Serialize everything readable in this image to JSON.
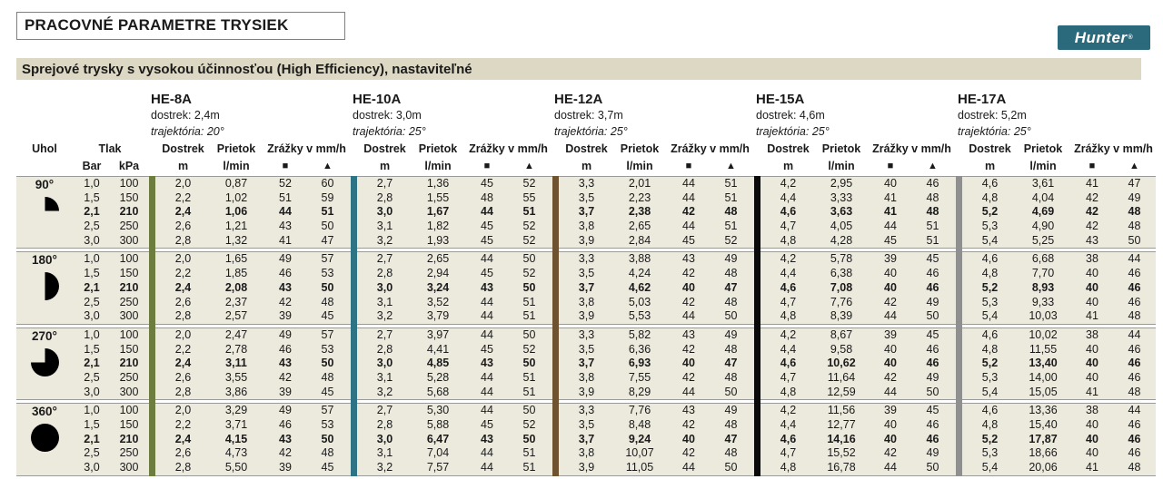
{
  "page": {
    "title": "PRACOVNÉ PARAMETRE TRYSIEK",
    "subtitle": "Sprejové trysky s vysokou účinnosťou (High Efficiency), nastaviteľné",
    "logo_text": "Hunter",
    "logo_reg": "®",
    "logo_bg": "#2B6A7C"
  },
  "table": {
    "headers": {
      "uhol": "Uhol",
      "tlak": "Tlak",
      "bar": "Bar",
      "kpa": "kPa",
      "dostrek": "Dostrek",
      "prietok": "Prietok",
      "zrazky": "Zrážky v mm/h",
      "m": "m",
      "lmin": "l/min",
      "square": "■",
      "triangle": "▲"
    },
    "nozzles": [
      {
        "name": "HE-8A",
        "range": "dostrek: 2,4m",
        "trajectory": "trajektória: 20°",
        "bar_color": "#6D7C3F"
      },
      {
        "name": "HE-10A",
        "range": "dostrek: 3,0m",
        "trajectory": "trajektória: 25°",
        "bar_color": "#2E7485"
      },
      {
        "name": "HE-12A",
        "range": "dostrek: 3,7m",
        "trajectory": "trajektória: 25°",
        "bar_color": "#6F522F"
      },
      {
        "name": "HE-15A",
        "range": "dostrek: 4,6m",
        "trajectory": "trajektória: 25°",
        "bar_color": "#0A0A0A"
      },
      {
        "name": "HE-17A",
        "range": "dostrek: 5,2m",
        "trajectory": "trajektória: 25°",
        "bar_color": "#8F8F8F"
      }
    ],
    "sections": [
      {
        "angle": "90°",
        "icon": "quarter",
        "rows": [
          {
            "bar": "1,0",
            "kpa": "100",
            "bold": false,
            "values": [
              [
                "2,0",
                "0,87",
                "52",
                "60"
              ],
              [
                "2,7",
                "1,36",
                "45",
                "52"
              ],
              [
                "3,3",
                "2,01",
                "44",
                "51"
              ],
              [
                "4,2",
                "2,95",
                "40",
                "46"
              ],
              [
                "4,6",
                "3,61",
                "41",
                "47"
              ]
            ]
          },
          {
            "bar": "1,5",
            "kpa": "150",
            "bold": false,
            "values": [
              [
                "2,2",
                "1,02",
                "51",
                "59"
              ],
              [
                "2,8",
                "1,55",
                "48",
                "55"
              ],
              [
                "3,5",
                "2,23",
                "44",
                "51"
              ],
              [
                "4,4",
                "3,33",
                "41",
                "48"
              ],
              [
                "4,8",
                "4,04",
                "42",
                "49"
              ]
            ]
          },
          {
            "bar": "2,1",
            "kpa": "210",
            "bold": true,
            "values": [
              [
                "2,4",
                "1,06",
                "44",
                "51"
              ],
              [
                "3,0",
                "1,67",
                "44",
                "51"
              ],
              [
                "3,7",
                "2,38",
                "42",
                "48"
              ],
              [
                "4,6",
                "3,63",
                "41",
                "48"
              ],
              [
                "5,2",
                "4,69",
                "42",
                "48"
              ]
            ]
          },
          {
            "bar": "2,5",
            "kpa": "250",
            "bold": false,
            "values": [
              [
                "2,6",
                "1,21",
                "43",
                "50"
              ],
              [
                "3,1",
                "1,82",
                "45",
                "52"
              ],
              [
                "3,8",
                "2,65",
                "44",
                "51"
              ],
              [
                "4,7",
                "4,05",
                "44",
                "51"
              ],
              [
                "5,3",
                "4,90",
                "42",
                "48"
              ]
            ]
          },
          {
            "bar": "3,0",
            "kpa": "300",
            "bold": false,
            "values": [
              [
                "2,8",
                "1,32",
                "41",
                "47"
              ],
              [
                "3,2",
                "1,93",
                "45",
                "52"
              ],
              [
                "3,9",
                "2,84",
                "45",
                "52"
              ],
              [
                "4,8",
                "4,28",
                "45",
                "51"
              ],
              [
                "5,4",
                "5,25",
                "43",
                "50"
              ]
            ]
          }
        ]
      },
      {
        "angle": "180°",
        "icon": "half",
        "rows": [
          {
            "bar": "1,0",
            "kpa": "100",
            "bold": false,
            "values": [
              [
                "2,0",
                "1,65",
                "49",
                "57"
              ],
              [
                "2,7",
                "2,65",
                "44",
                "50"
              ],
              [
                "3,3",
                "3,88",
                "43",
                "49"
              ],
              [
                "4,2",
                "5,78",
                "39",
                "45"
              ],
              [
                "4,6",
                "6,68",
                "38",
                "44"
              ]
            ]
          },
          {
            "bar": "1,5",
            "kpa": "150",
            "bold": false,
            "values": [
              [
                "2,2",
                "1,85",
                "46",
                "53"
              ],
              [
                "2,8",
                "2,94",
                "45",
                "52"
              ],
              [
                "3,5",
                "4,24",
                "42",
                "48"
              ],
              [
                "4,4",
                "6,38",
                "40",
                "46"
              ],
              [
                "4,8",
                "7,70",
                "40",
                "46"
              ]
            ]
          },
          {
            "bar": "2,1",
            "kpa": "210",
            "bold": true,
            "values": [
              [
                "2,4",
                "2,08",
                "43",
                "50"
              ],
              [
                "3,0",
                "3,24",
                "43",
                "50"
              ],
              [
                "3,7",
                "4,62",
                "40",
                "47"
              ],
              [
                "4,6",
                "7,08",
                "40",
                "46"
              ],
              [
                "5,2",
                "8,93",
                "40",
                "46"
              ]
            ]
          },
          {
            "bar": "2,5",
            "kpa": "250",
            "bold": false,
            "values": [
              [
                "2,6",
                "2,37",
                "42",
                "48"
              ],
              [
                "3,1",
                "3,52",
                "44",
                "51"
              ],
              [
                "3,8",
                "5,03",
                "42",
                "48"
              ],
              [
                "4,7",
                "7,76",
                "42",
                "49"
              ],
              [
                "5,3",
                "9,33",
                "40",
                "46"
              ]
            ]
          },
          {
            "bar": "3,0",
            "kpa": "300",
            "bold": false,
            "values": [
              [
                "2,8",
                "2,57",
                "39",
                "45"
              ],
              [
                "3,2",
                "3,79",
                "44",
                "51"
              ],
              [
                "3,9",
                "5,53",
                "44",
                "50"
              ],
              [
                "4,8",
                "8,39",
                "44",
                "50"
              ],
              [
                "5,4",
                "10,03",
                "41",
                "48"
              ]
            ]
          }
        ]
      },
      {
        "angle": "270°",
        "icon": "three-quarter",
        "rows": [
          {
            "bar": "1,0",
            "kpa": "100",
            "bold": false,
            "values": [
              [
                "2,0",
                "2,47",
                "49",
                "57"
              ],
              [
                "2,7",
                "3,97",
                "44",
                "50"
              ],
              [
                "3,3",
                "5,82",
                "43",
                "49"
              ],
              [
                "4,2",
                "8,67",
                "39",
                "45"
              ],
              [
                "4,6",
                "10,02",
                "38",
                "44"
              ]
            ]
          },
          {
            "bar": "1,5",
            "kpa": "150",
            "bold": false,
            "values": [
              [
                "2,2",
                "2,78",
                "46",
                "53"
              ],
              [
                "2,8",
                "4,41",
                "45",
                "52"
              ],
              [
                "3,5",
                "6,36",
                "42",
                "48"
              ],
              [
                "4,4",
                "9,58",
                "40",
                "46"
              ],
              [
                "4,8",
                "11,55",
                "40",
                "46"
              ]
            ]
          },
          {
            "bar": "2,1",
            "kpa": "210",
            "bold": true,
            "values": [
              [
                "2,4",
                "3,11",
                "43",
                "50"
              ],
              [
                "3,0",
                "4,85",
                "43",
                "50"
              ],
              [
                "3,7",
                "6,93",
                "40",
                "47"
              ],
              [
                "4,6",
                "10,62",
                "40",
                "46"
              ],
              [
                "5,2",
                "13,40",
                "40",
                "46"
              ]
            ]
          },
          {
            "bar": "2,5",
            "kpa": "250",
            "bold": false,
            "values": [
              [
                "2,6",
                "3,55",
                "42",
                "48"
              ],
              [
                "3,1",
                "5,28",
                "44",
                "51"
              ],
              [
                "3,8",
                "7,55",
                "42",
                "48"
              ],
              [
                "4,7",
                "11,64",
                "42",
                "49"
              ],
              [
                "5,3",
                "14,00",
                "40",
                "46"
              ]
            ]
          },
          {
            "bar": "3,0",
            "kpa": "300",
            "bold": false,
            "values": [
              [
                "2,8",
                "3,86",
                "39",
                "45"
              ],
              [
                "3,2",
                "5,68",
                "44",
                "51"
              ],
              [
                "3,9",
                "8,29",
                "44",
                "50"
              ],
              [
                "4,8",
                "12,59",
                "44",
                "50"
              ],
              [
                "5,4",
                "15,05",
                "41",
                "48"
              ]
            ]
          }
        ]
      },
      {
        "angle": "360°",
        "icon": "full",
        "rows": [
          {
            "bar": "1,0",
            "kpa": "100",
            "bold": false,
            "values": [
              [
                "2,0",
                "3,29",
                "49",
                "57"
              ],
              [
                "2,7",
                "5,30",
                "44",
                "50"
              ],
              [
                "3,3",
                "7,76",
                "43",
                "49"
              ],
              [
                "4,2",
                "11,56",
                "39",
                "45"
              ],
              [
                "4,6",
                "13,36",
                "38",
                "44"
              ]
            ]
          },
          {
            "bar": "1,5",
            "kpa": "150",
            "bold": false,
            "values": [
              [
                "2,2",
                "3,71",
                "46",
                "53"
              ],
              [
                "2,8",
                "5,88",
                "45",
                "52"
              ],
              [
                "3,5",
                "8,48",
                "42",
                "48"
              ],
              [
                "4,4",
                "12,77",
                "40",
                "46"
              ],
              [
                "4,8",
                "15,40",
                "40",
                "46"
              ]
            ]
          },
          {
            "bar": "2,1",
            "kpa": "210",
            "bold": true,
            "values": [
              [
                "2,4",
                "4,15",
                "43",
                "50"
              ],
              [
                "3,0",
                "6,47",
                "43",
                "50"
              ],
              [
                "3,7",
                "9,24",
                "40",
                "47"
              ],
              [
                "4,6",
                "14,16",
                "40",
                "46"
              ],
              [
                "5,2",
                "17,87",
                "40",
                "46"
              ]
            ]
          },
          {
            "bar": "2,5",
            "kpa": "250",
            "bold": false,
            "values": [
              [
                "2,6",
                "4,73",
                "42",
                "48"
              ],
              [
                "3,1",
                "7,04",
                "44",
                "51"
              ],
              [
                "3,8",
                "10,07",
                "42",
                "48"
              ],
              [
                "4,7",
                "15,52",
                "42",
                "49"
              ],
              [
                "5,3",
                "18,66",
                "40",
                "46"
              ]
            ]
          },
          {
            "bar": "3,0",
            "kpa": "300",
            "bold": false,
            "values": [
              [
                "2,8",
                "5,50",
                "39",
                "45"
              ],
              [
                "3,2",
                "7,57",
                "44",
                "51"
              ],
              [
                "3,9",
                "11,05",
                "44",
                "50"
              ],
              [
                "4,8",
                "16,78",
                "44",
                "50"
              ],
              [
                "5,4",
                "20,06",
                "41",
                "48"
              ]
            ]
          }
        ]
      }
    ]
  }
}
